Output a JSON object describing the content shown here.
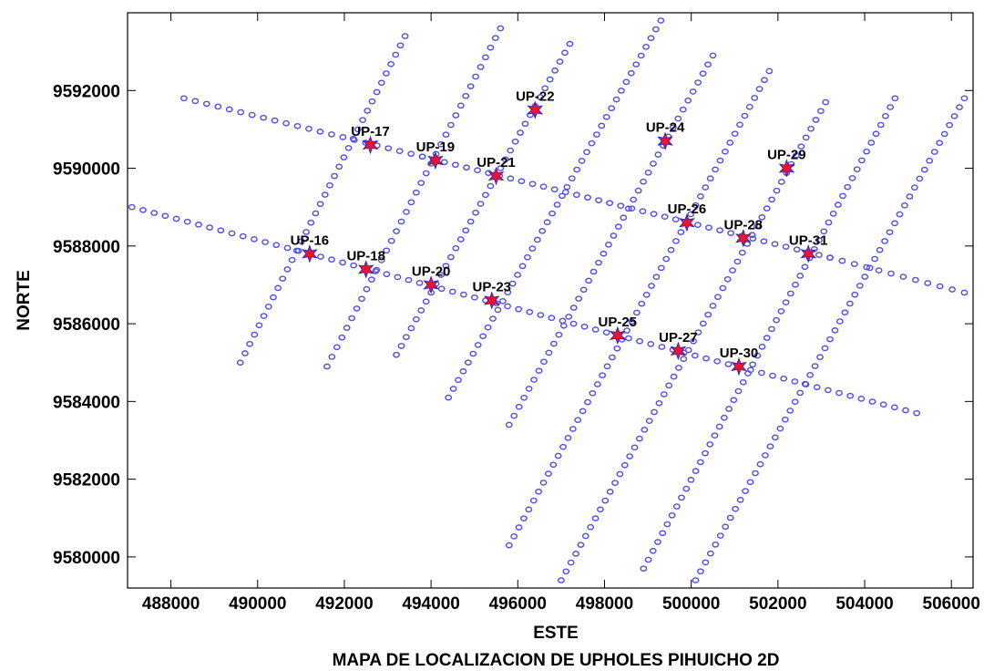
{
  "chart_data": {
    "type": "scatter",
    "title": "MAPA DE LOCALIZACION DE UPHOLES PIHUICHO 2D",
    "xlabel": "ESTE",
    "ylabel": "NORTE",
    "xlim": [
      487000,
      506500
    ],
    "ylim": [
      9579200,
      9594000
    ],
    "xticks": [
      488000,
      490000,
      492000,
      494000,
      496000,
      498000,
      500000,
      502000,
      504000,
      506000
    ],
    "yticks": [
      9580000,
      9582000,
      9584000,
      9586000,
      9588000,
      9590000,
      9592000
    ],
    "grid": false,
    "colors": {
      "receiver": "#4f4fe0",
      "uphole": "#ee1133"
    },
    "seismic_lines": [
      {
        "start": [
          488300,
          9591800
        ],
        "end": [
          493800,
          9590300
        ],
        "count": 22
      },
      {
        "start": [
          493800,
          9590300
        ],
        "end": [
          503200,
          9587700
        ],
        "count": 38
      },
      {
        "start": [
          503200,
          9587700
        ],
        "end": [
          506300,
          9586800
        ],
        "count": 12
      },
      {
        "start": [
          487100,
          9589000
        ],
        "end": [
          491200,
          9587800
        ],
        "count": 17
      },
      {
        "start": [
          491200,
          9587800
        ],
        "end": [
          498300,
          9585700
        ],
        "count": 29
      },
      {
        "start": [
          498300,
          9585700
        ],
        "end": [
          505200,
          9583700
        ],
        "count": 28
      },
      {
        "start": [
          489600,
          9585000
        ],
        "end": [
          493400,
          9593400
        ],
        "count": 36
      },
      {
        "start": [
          491600,
          9584900
        ],
        "end": [
          495600,
          9593600
        ],
        "count": 36
      },
      {
        "start": [
          493200,
          9585200
        ],
        "end": [
          497200,
          9593200
        ],
        "count": 36
      },
      {
        "start": [
          494400,
          9584100
        ],
        "end": [
          499300,
          9593800
        ],
        "count": 44
      },
      {
        "start": [
          495800,
          9583400
        ],
        "end": [
          500500,
          9592900
        ],
        "count": 42
      },
      {
        "start": [
          495800,
          9580300
        ],
        "end": [
          501800,
          9592500
        ],
        "count": 54
      },
      {
        "start": [
          497000,
          9579400
        ],
        "end": [
          503100,
          9591700
        ],
        "count": 55
      },
      {
        "start": [
          498900,
          9579700
        ],
        "end": [
          504700,
          9591800
        ],
        "count": 54
      },
      {
        "start": [
          500100,
          9579400
        ],
        "end": [
          506300,
          9591800
        ],
        "count": 55
      }
    ],
    "upholes": [
      {
        "name": "UP-16",
        "x": 491200,
        "y": 9587800
      },
      {
        "name": "UP-17",
        "x": 492600,
        "y": 9590600
      },
      {
        "name": "UP-18",
        "x": 492500,
        "y": 9587400
      },
      {
        "name": "UP-19",
        "x": 494100,
        "y": 9590200
      },
      {
        "name": "UP-20",
        "x": 494000,
        "y": 9587000
      },
      {
        "name": "UP-21",
        "x": 495500,
        "y": 9589800
      },
      {
        "name": "UP-22",
        "x": 496400,
        "y": 9591500
      },
      {
        "name": "UP-23",
        "x": 495400,
        "y": 9586600
      },
      {
        "name": "UP-24",
        "x": 499400,
        "y": 9590700
      },
      {
        "name": "UP-25",
        "x": 498300,
        "y": 9585700
      },
      {
        "name": "UP-26",
        "x": 499900,
        "y": 9588600
      },
      {
        "name": "UP-27",
        "x": 499700,
        "y": 9585300
      },
      {
        "name": "UP-28",
        "x": 501200,
        "y": 9588200
      },
      {
        "name": "UP-29",
        "x": 502200,
        "y": 9590000
      },
      {
        "name": "UP-30",
        "x": 501100,
        "y": 9584900
      },
      {
        "name": "UP-31",
        "x": 502700,
        "y": 9587800
      }
    ]
  }
}
